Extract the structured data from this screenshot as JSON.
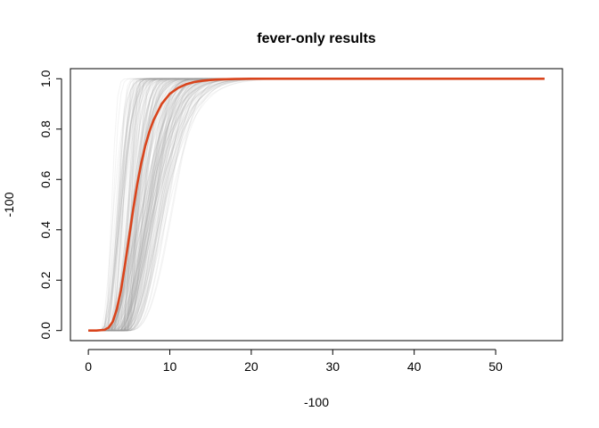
{
  "chart_data": {
    "type": "line",
    "title": "fever-only results",
    "xlabel": "-100",
    "ylabel": "-100",
    "xlim": [
      -2.2,
      58.2
    ],
    "ylim": [
      -0.04,
      1.04
    ],
    "xticks": [
      0,
      10,
      20,
      30,
      40,
      50
    ],
    "yticks": [
      0.0,
      0.2,
      0.4,
      0.6,
      0.8,
      1.0
    ],
    "xtick_labels": [
      "0",
      "10",
      "20",
      "30",
      "40",
      "50"
    ],
    "ytick_labels": [
      "0.0",
      "0.2",
      "0.4",
      "0.6",
      "0.8",
      "1.0"
    ],
    "grid": false,
    "legend": "none",
    "x_domain": [
      0,
      56
    ],
    "colors": {
      "main_curve": "#d9441c",
      "sample_curves": "#9a9a9a"
    },
    "sample_curve_count": 200,
    "series": [
      {
        "x": [
          0,
          1,
          2,
          2.5,
          3,
          3.5,
          4,
          4.5,
          5,
          5.5,
          6,
          6.5,
          7,
          7.5,
          8,
          9,
          10,
          11,
          12,
          13,
          14,
          15,
          16,
          18,
          20,
          25,
          30,
          40,
          50,
          56
        ],
        "values": [
          0.0,
          0.0,
          0.003,
          0.012,
          0.035,
          0.085,
          0.16,
          0.26,
          0.37,
          0.48,
          0.58,
          0.665,
          0.735,
          0.79,
          0.835,
          0.9,
          0.94,
          0.963,
          0.978,
          0.987,
          0.992,
          0.995,
          0.997,
          0.999,
          1.0,
          1.0,
          1.0,
          1.0,
          1.0,
          1.0
        ]
      }
    ]
  }
}
